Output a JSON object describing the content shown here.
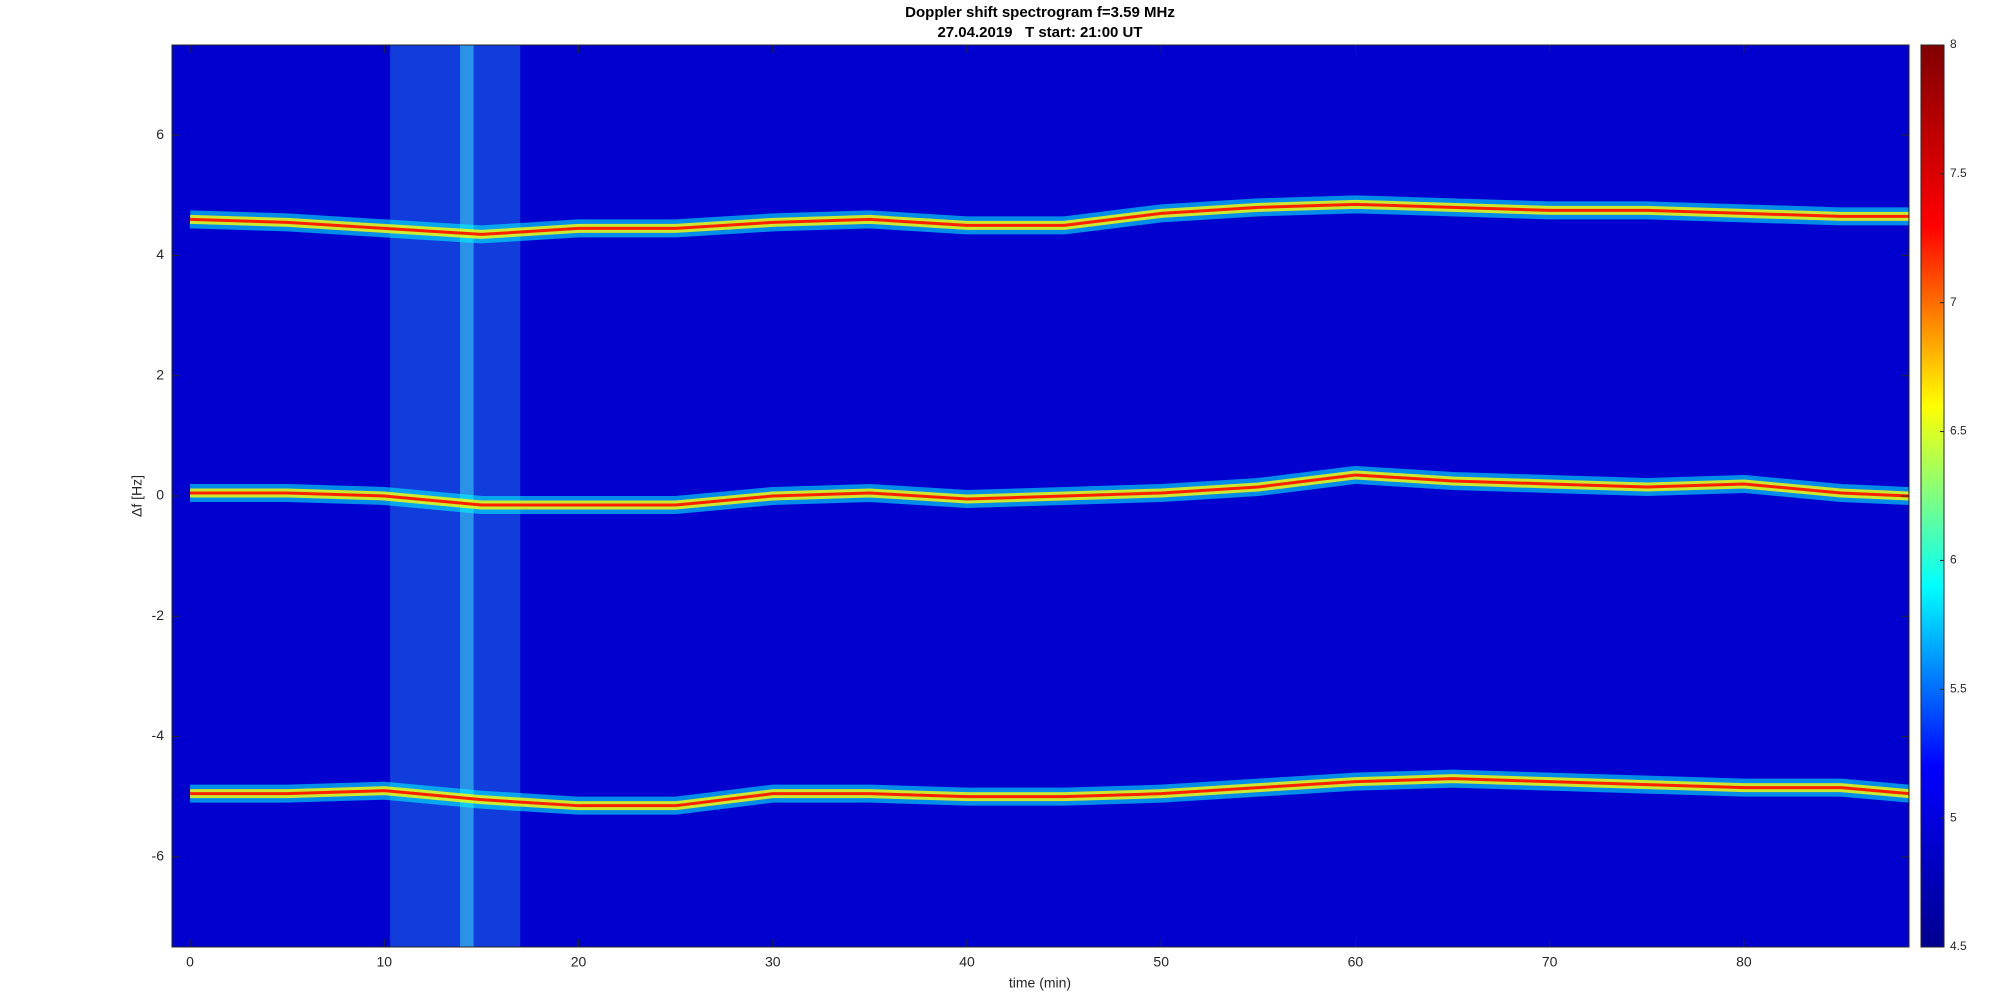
{
  "chart_data": {
    "type": "spectrogram",
    "title": "Doppler shift spectrogram f=3.59 MHz",
    "subtitle": "27.04.2019   T start: 21:00 UT",
    "xlabel": "time (min)",
    "ylabel": "Δf [Hz]",
    "xlim": [
      -0.93,
      88.5
    ],
    "ylim": [
      -7.5,
      7.5
    ],
    "xticks": [
      0,
      10,
      20,
      30,
      40,
      50,
      60,
      70,
      80
    ],
    "yticks": [
      -6,
      -4,
      -2,
      0,
      2,
      4,
      6
    ],
    "background_level": 4.9,
    "x": [
      0,
      5,
      10,
      15,
      20,
      25,
      30,
      35,
      40,
      45,
      50,
      55,
      60,
      65,
      70,
      75,
      80,
      85,
      88.5
    ],
    "series": [
      {
        "color": "#ff2000",
        "values": [
          4.6,
          4.55,
          4.45,
          4.35,
          4.45,
          4.45,
          4.55,
          4.6,
          4.5,
          4.5,
          4.7,
          4.8,
          4.85,
          4.8,
          4.75,
          4.75,
          4.7,
          4.65,
          4.65
        ]
      },
      {
        "color": "#ff2000",
        "values": [
          0.05,
          0.05,
          0,
          -0.15,
          -0.15,
          -0.15,
          0,
          0.05,
          -0.05,
          0,
          0.05,
          0.15,
          0.35,
          0.25,
          0.2,
          0.15,
          0.2,
          0.05,
          0
        ]
      },
      {
        "color": "#ff2000",
        "values": [
          -4.95,
          -4.95,
          -4.9,
          -5.05,
          -5.15,
          -5.15,
          -4.95,
          -4.95,
          -5.0,
          -5.0,
          -4.95,
          -4.85,
          -4.75,
          -4.7,
          -4.75,
          -4.8,
          -4.85,
          -4.85,
          -4.95
        ]
      }
    ],
    "shaded_regions": [
      {
        "x": [
          10.3,
          17
        ],
        "color": "#1f6fe8"
      },
      {
        "x": [
          13.9,
          14.6
        ],
        "color": "#3fd8f0"
      }
    ],
    "colorbar": {
      "clim": [
        4.5,
        8
      ],
      "ticks": [
        4.5,
        5,
        5.5,
        6,
        6.5,
        7,
        7.5,
        8
      ],
      "colors": [
        "#00008f",
        "#0000ff",
        "#00ffff",
        "#ffff00",
        "#ff0000",
        "#800000"
      ]
    }
  }
}
